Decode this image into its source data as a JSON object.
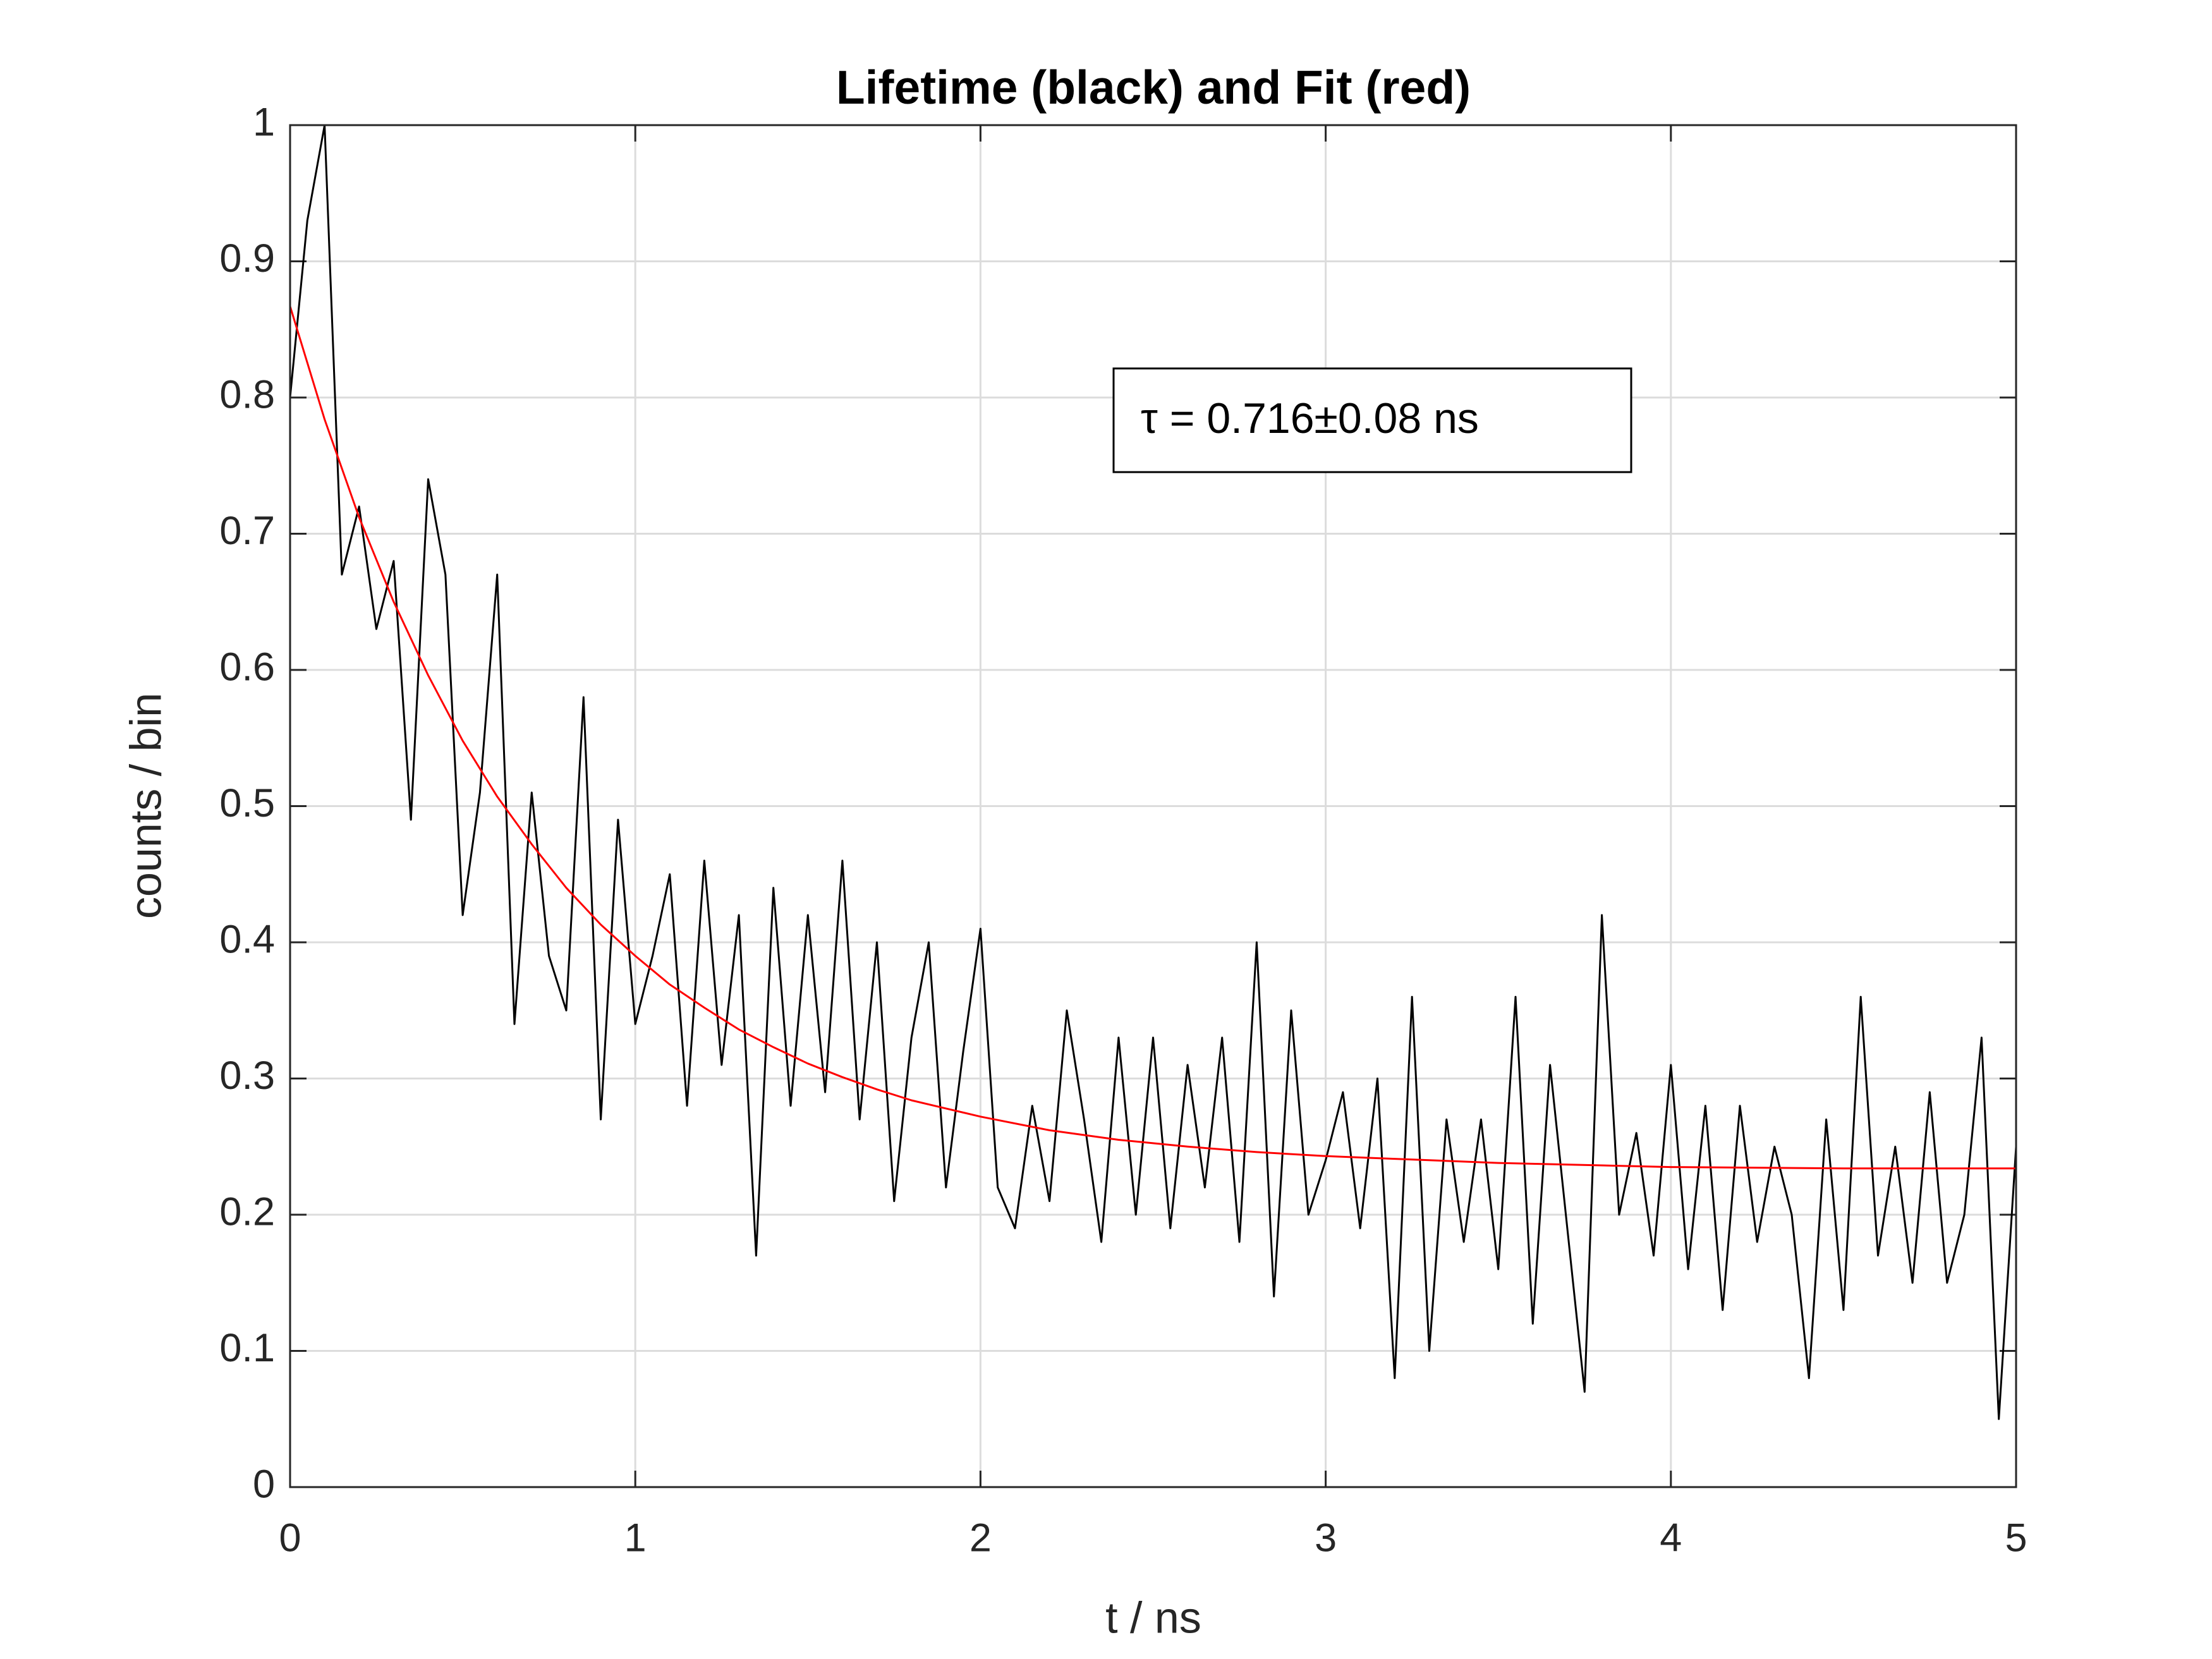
{
  "chart_data": {
    "type": "line",
    "title": "Lifetime (black) and Fit (red)",
    "x_label": "t / ns",
    "y_label": "counts / bin",
    "annotation": "τ = 0.716±0.08 ns",
    "xlim": [
      0,
      5
    ],
    "xticks": [
      0,
      1,
      2,
      3,
      4,
      5
    ],
    "ylim": [
      0,
      1
    ],
    "yticks": [
      0,
      0.1,
      0.2,
      0.3,
      0.4,
      0.5,
      0.6,
      0.7,
      0.8,
      0.9,
      1
    ],
    "grid": true,
    "series": [
      {
        "color": "#000000",
        "x": [
          0,
          0.05,
          0.1,
          0.15,
          0.2,
          0.25,
          0.3,
          0.35,
          0.4,
          0.45,
          0.5,
          0.55,
          0.6,
          0.65,
          0.7,
          0.75,
          0.8,
          0.85,
          0.9,
          0.95,
          1,
          1.05,
          1.1,
          1.15,
          1.2,
          1.25,
          1.3,
          1.35,
          1.4,
          1.45,
          1.5,
          1.55,
          1.6,
          1.65,
          1.7,
          1.75,
          1.8,
          1.85,
          1.9,
          1.95,
          2,
          2.05,
          2.1,
          2.15,
          2.2,
          2.25,
          2.3,
          2.35,
          2.4,
          2.45,
          2.5,
          2.55,
          2.6,
          2.65,
          2.7,
          2.75,
          2.8,
          2.85,
          2.9,
          2.95,
          3,
          3.05,
          3.1,
          3.15,
          3.2,
          3.25,
          3.3,
          3.35,
          3.4,
          3.45,
          3.5,
          3.55,
          3.6,
          3.65,
          3.7,
          3.75,
          3.8,
          3.85,
          3.9,
          3.95,
          4,
          4.05,
          4.1,
          4.15,
          4.2,
          4.25,
          4.3,
          4.35,
          4.4,
          4.45,
          4.5,
          4.55,
          4.6,
          4.65,
          4.7,
          4.75,
          4.8,
          4.85,
          4.9,
          4.95,
          5
        ],
        "values": [
          0.8,
          0.93,
          1.0,
          0.67,
          0.72,
          0.63,
          0.68,
          0.49,
          0.74,
          0.67,
          0.42,
          0.51,
          0.67,
          0.34,
          0.51,
          0.39,
          0.35,
          0.58,
          0.27,
          0.49,
          0.34,
          0.39,
          0.45,
          0.28,
          0.46,
          0.31,
          0.42,
          0.17,
          0.44,
          0.28,
          0.42,
          0.29,
          0.46,
          0.27,
          0.4,
          0.21,
          0.33,
          0.4,
          0.22,
          0.32,
          0.41,
          0.22,
          0.19,
          0.28,
          0.21,
          0.35,
          0.27,
          0.18,
          0.33,
          0.2,
          0.33,
          0.19,
          0.31,
          0.22,
          0.33,
          0.18,
          0.4,
          0.14,
          0.35,
          0.2,
          0.24,
          0.29,
          0.19,
          0.3,
          0.08,
          0.36,
          0.1,
          0.27,
          0.18,
          0.27,
          0.16,
          0.36,
          0.12,
          0.31,
          0.19,
          0.07,
          0.42,
          0.2,
          0.26,
          0.17,
          0.31,
          0.16,
          0.28,
          0.13,
          0.28,
          0.18,
          0.25,
          0.2,
          0.08,
          0.27,
          0.13,
          0.36,
          0.17,
          0.25,
          0.15,
          0.29,
          0.15,
          0.2,
          0.33,
          0.05,
          0.25
        ]
      },
      {
        "color": "#ff0000",
        "x": [
          0,
          0.1,
          0.2,
          0.3,
          0.4,
          0.5,
          0.6,
          0.7,
          0.8,
          0.9,
          1,
          1.1,
          1.2,
          1.3,
          1.4,
          1.5,
          1.6,
          1.7,
          1.8,
          1.9,
          2,
          2.2,
          2.4,
          2.6,
          2.8,
          3,
          3.5,
          4,
          4.5,
          5
        ],
        "values": [
          0.867,
          0.784,
          0.712,
          0.65,
          0.596,
          0.548,
          0.507,
          0.472,
          0.44,
          0.413,
          0.39,
          0.369,
          0.352,
          0.336,
          0.323,
          0.311,
          0.301,
          0.292,
          0.284,
          0.278,
          0.272,
          0.262,
          0.255,
          0.25,
          0.246,
          0.243,
          0.238,
          0.235,
          0.234,
          0.234
        ]
      }
    ]
  }
}
